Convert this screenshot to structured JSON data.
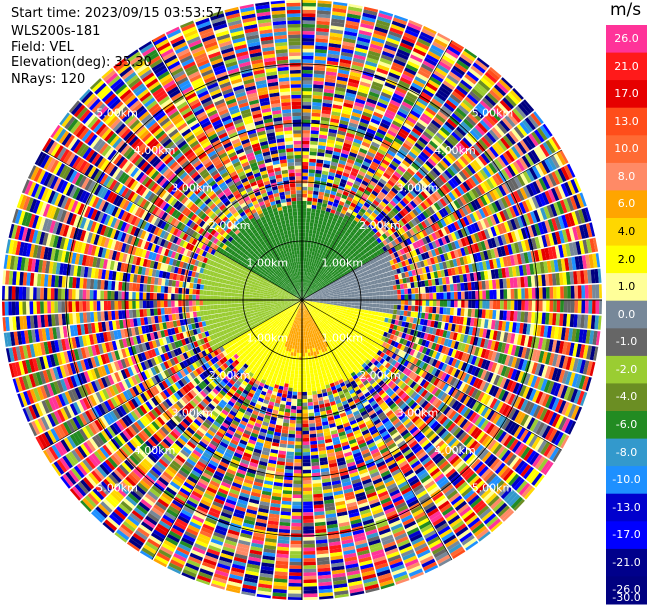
{
  "info": {
    "start_time": "Start time: 2023/09/15 03:53:57",
    "instrument": "WLS200s-181",
    "field": "Field: VEL",
    "elevation": "Elevation(deg): 35.30",
    "nrays": "NRays: 120"
  },
  "colorbar": {
    "unit": "m/s",
    "bands": [
      {
        "color": "#ff3399",
        "label": "26.0"
      },
      {
        "color": "#ff1a1a",
        "label": "21.0"
      },
      {
        "color": "#e60000",
        "label": "17.0"
      },
      {
        "color": "#ff4d1a",
        "label": "13.0"
      },
      {
        "color": "#ff6a33",
        "label": "10.0"
      },
      {
        "color": "#ff8a66",
        "label": "8.0"
      },
      {
        "color": "#ffa500",
        "label": "6.0"
      },
      {
        "color": "#ffd700",
        "label": "4.0"
      },
      {
        "color": "#ffff00",
        "label": "2.0"
      },
      {
        "color": "#ffff99",
        "label": "1.0"
      },
      {
        "color": "#778899",
        "label": "0.0"
      },
      {
        "color": "#666666",
        "label": "-1.0"
      },
      {
        "color": "#9acd32",
        "label": "-2.0"
      },
      {
        "color": "#6b8e23",
        "label": "-4.0"
      },
      {
        "color": "#228b22",
        "label": "-6.0"
      },
      {
        "color": "#3399cc",
        "label": "-8.0"
      },
      {
        "color": "#1e90ff",
        "label": "-10.0"
      },
      {
        "color": "#0000cd",
        "label": "-13.0"
      },
      {
        "color": "#0000ff",
        "label": "-17.0"
      },
      {
        "color": "#00008b",
        "label": "-21.0"
      },
      {
        "color": "#000080",
        "label": "-26.0"
      }
    ],
    "bottom_label": "-30.0"
  },
  "chart_data": {
    "type": "ppi",
    "field": "VEL",
    "unit": "m/s",
    "nrays": 120,
    "elevation_deg": 35.3,
    "range_rings_km": [
      1.0,
      2.0,
      3.0,
      4.0
    ],
    "range_ring_labels": [
      "1.00km",
      "2.00km",
      "3.00km",
      "4.00km",
      "5.00km"
    ],
    "spoke_angles_deg": [
      0,
      30,
      60,
      90,
      120,
      150,
      180,
      210,
      240,
      270,
      300,
      330
    ],
    "regions": [
      {
        "sector": "north",
        "az_from": 300,
        "az_to": 60,
        "max_range_km": 1.6,
        "velocity": -6.0
      },
      {
        "sector": "northwest",
        "az_from": 240,
        "az_to": 300,
        "max_range_km": 1.7,
        "velocity": -2.0
      },
      {
        "sector": "east-west",
        "az_from": 60,
        "az_to": 100,
        "max_range_km": 1.6,
        "velocity": 0.0
      },
      {
        "sector": "south",
        "az_from": 100,
        "az_to": 240,
        "max_range_km": 1.5,
        "velocity": 2.0
      },
      {
        "sector": "south-core",
        "az_from": 150,
        "az_to": 200,
        "max_range_km": 0.9,
        "velocity": 6.0
      }
    ]
  }
}
